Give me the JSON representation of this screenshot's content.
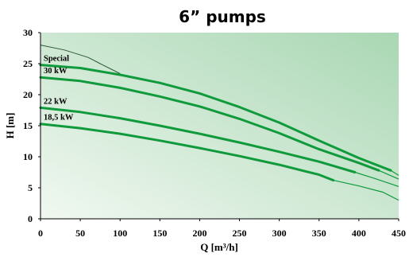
{
  "chart_data": {
    "type": "line",
    "title": "6” pumps",
    "xlabel": "Q [m³/h]",
    "ylabel": "H [m]",
    "xlim": [
      0,
      450
    ],
    "ylim": [
      0,
      30
    ],
    "xticks": [
      "0",
      "50",
      "100",
      "150",
      "200",
      "250",
      "300",
      "350",
      "400",
      "450"
    ],
    "yticks": [
      "0",
      "5",
      "10",
      "15",
      "20",
      "25",
      "30"
    ],
    "grid": false,
    "background_gradient": [
      "#a9d7b3",
      "#f1f8f1"
    ],
    "line_color": "#109a3c",
    "series": [
      {
        "name": "Special",
        "thick": [
          [
            0,
            24.8
          ],
          [
            50,
            24.3
          ],
          [
            100,
            23.2
          ],
          [
            150,
            21.9
          ],
          [
            200,
            20.2
          ],
          [
            250,
            18.0
          ],
          [
            300,
            15.5
          ],
          [
            350,
            12.6
          ],
          [
            400,
            9.8
          ],
          [
            440,
            7.8
          ]
        ],
        "thin": [
          [
            440,
            7.8
          ],
          [
            450,
            7.0
          ]
        ]
      },
      {
        "name": "30 kW",
        "thick": [
          [
            0,
            22.8
          ],
          [
            50,
            22.2
          ],
          [
            100,
            21.1
          ],
          [
            150,
            19.7
          ],
          [
            200,
            18.1
          ],
          [
            250,
            16.1
          ],
          [
            300,
            13.8
          ],
          [
            350,
            11.2
          ],
          [
            400,
            9.0
          ],
          [
            425,
            7.8
          ]
        ],
        "thin": [
          [
            425,
            7.8
          ],
          [
            450,
            6.4
          ]
        ]
      },
      {
        "name": "22 kW",
        "thick": [
          [
            0,
            17.9
          ],
          [
            50,
            17.2
          ],
          [
            100,
            16.2
          ],
          [
            150,
            15.0
          ],
          [
            200,
            13.7
          ],
          [
            250,
            12.3
          ],
          [
            300,
            10.8
          ],
          [
            350,
            9.2
          ],
          [
            395,
            7.5
          ]
        ],
        "thin": [
          [
            395,
            7.5
          ],
          [
            420,
            6.5
          ],
          [
            450,
            5.2
          ]
        ]
      },
      {
        "name": "18,5 kW",
        "thick": [
          [
            0,
            15.3
          ],
          [
            50,
            14.6
          ],
          [
            100,
            13.7
          ],
          [
            150,
            12.6
          ],
          [
            200,
            11.4
          ],
          [
            250,
            10.1
          ],
          [
            300,
            8.7
          ],
          [
            350,
            7.1
          ],
          [
            368,
            6.2
          ]
        ],
        "thin": [
          [
            368,
            6.2
          ],
          [
            400,
            5.3
          ],
          [
            430,
            4.3
          ],
          [
            450,
            3.0
          ]
        ]
      }
    ],
    "envelope": [
      [
        0,
        28.0
      ],
      [
        30,
        27.2
      ],
      [
        60,
        26.0
      ],
      [
        75,
        25.0
      ],
      [
        100,
        23.4
      ]
    ]
  }
}
